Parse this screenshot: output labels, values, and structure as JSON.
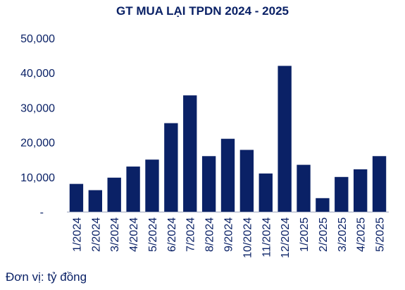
{
  "chart_data": {
    "type": "bar",
    "title": "GT MUA LẠI TPDN 2024 - 2025",
    "categories": [
      "1/2024",
      "2/2024",
      "3/2024",
      "4/2024",
      "5/2024",
      "6/2024",
      "7/2024",
      "8/2024",
      "9/2024",
      "10/2024",
      "11/2024",
      "12/2024",
      "1/2025",
      "2/2025",
      "3/2025",
      "4/2025",
      "5/2025"
    ],
    "values": [
      8000,
      6200,
      9800,
      13000,
      15000,
      25500,
      33500,
      16000,
      21000,
      17800,
      11000,
      42000,
      13500,
      3900,
      10000,
      12200,
      16000
    ],
    "ylim": [
      0,
      50000
    ],
    "y_ticks": [
      "-",
      "10,000",
      "20,000",
      "30,000",
      "40,000",
      "50,000"
    ],
    "grid": false,
    "bar_color": "#0a2166",
    "text_color": "#0a2166"
  },
  "footer": {
    "unit_note": "Đơn vị: tỷ đồng"
  }
}
